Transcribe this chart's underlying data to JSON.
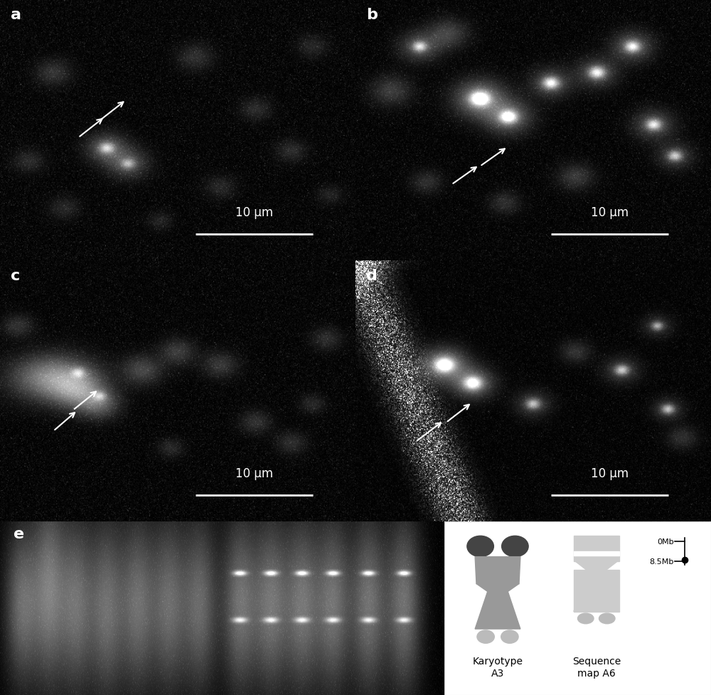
{
  "panel_labels": [
    "a",
    "b",
    "c",
    "d",
    "e"
  ],
  "panel_label_color": "white",
  "panel_label_fontsize": 16,
  "background_color": "#000000",
  "scalebar_text": "10 μm",
  "scalebar_color": "white",
  "scalebar_fontsize": 12,
  "arrow_color": "white",
  "diagram_dark": "#444444",
  "diagram_medium": "#999999",
  "diagram_light": "#bbbbbb",
  "diagram_lighter": "#cccccc",
  "karyotype_label": "Karyotype\nA3",
  "sequence_label": "Sequence\nmap A6",
  "label_0mb": "0Mb",
  "label_85mb": "8.5Mb",
  "diagram_label_fontsize": 10,
  "diagram_text_color": "#000000"
}
